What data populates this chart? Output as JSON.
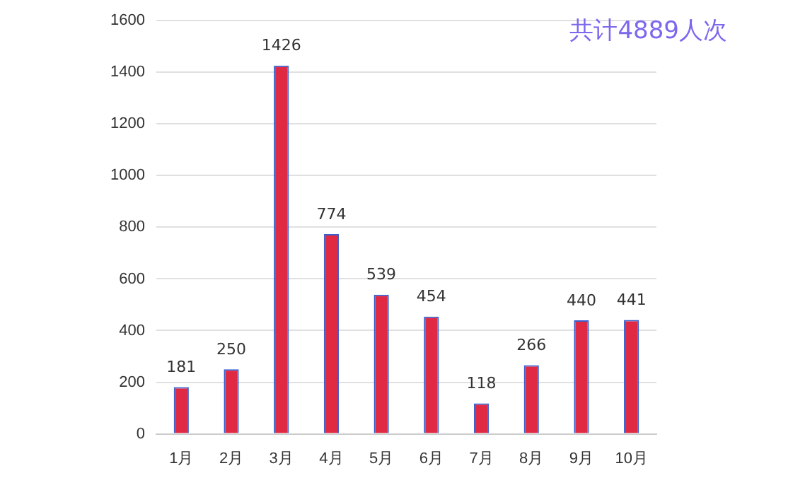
{
  "chart_data": {
    "type": "bar",
    "categories": [
      "1月",
      "2月",
      "3月",
      "4月",
      "5月",
      "6月",
      "7月",
      "8月",
      "9月",
      "10月"
    ],
    "values": [
      181,
      250,
      1426,
      774,
      539,
      454,
      118,
      266,
      440,
      441
    ],
    "color": "#e02a44",
    "ylim": [
      0,
      1600
    ],
    "yticks": [
      0,
      200,
      400,
      600,
      800,
      1000,
      1200,
      1400,
      1600
    ],
    "grid": "y",
    "data_labels": true,
    "annotations": [
      "共计4889人次"
    ]
  }
}
